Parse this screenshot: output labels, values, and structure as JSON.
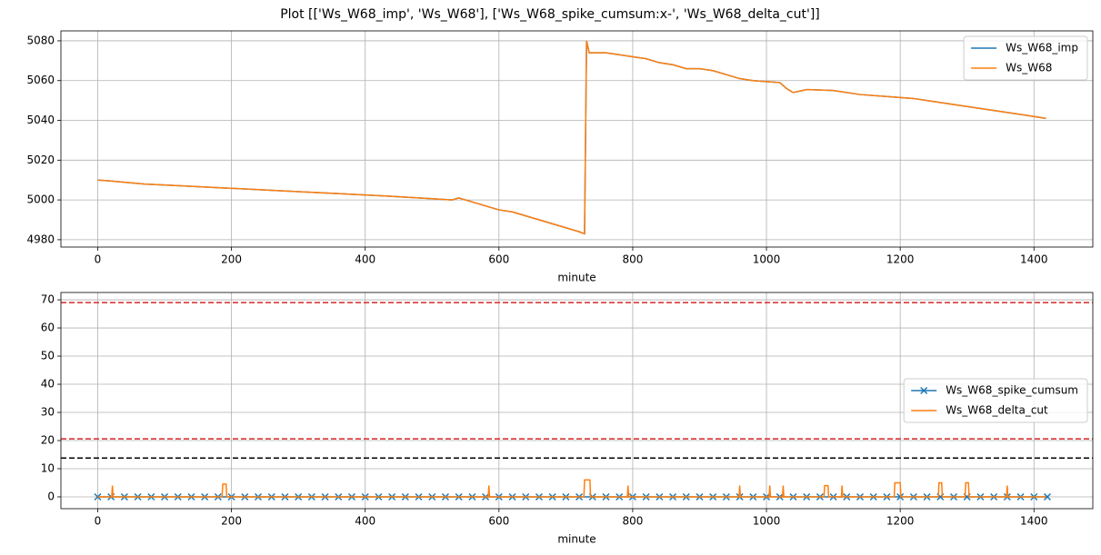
{
  "title": "Plot [['Ws_W68_imp', 'Ws_W68'], ['Ws_W68_spike_cumsum:x-', 'Ws_W68_delta_cut']]",
  "chart_data": [
    {
      "type": "line",
      "xlabel": "minute",
      "grid": true,
      "legend": "upper right",
      "xlim": [
        -55,
        1488
      ],
      "ylim": [
        4976.3,
        5085
      ],
      "xticks": [
        0,
        200,
        400,
        600,
        800,
        1000,
        1200,
        1400
      ],
      "yticks": [
        4980,
        5000,
        5020,
        5040,
        5060,
        5080
      ],
      "x": [
        0,
        20,
        70,
        130,
        190,
        250,
        310,
        370,
        430,
        480,
        530,
        540,
        560,
        580,
        600,
        620,
        640,
        660,
        680,
        700,
        720,
        728,
        731,
        735,
        760,
        780,
        800,
        820,
        840,
        860,
        880,
        900,
        920,
        940,
        960,
        980,
        1000,
        1020,
        1030,
        1040,
        1060,
        1100,
        1140,
        1180,
        1220,
        1260,
        1300,
        1340,
        1380,
        1418
      ],
      "series": [
        {
          "name": "Ws_W68_imp",
          "color": "#1f77b4",
          "values": [
            5010,
            5009.5,
            5008,
            5007,
            5006,
            5005,
            5004,
            5003,
            5002,
            5001,
            5000,
            5001,
            4999,
            4997,
            4995,
            4994,
            4992,
            4990,
            4988,
            4986,
            4984,
            4983,
            5080,
            5074,
            5074,
            5073,
            5072,
            5071,
            5069,
            5068,
            5066,
            5066,
            5065,
            5063,
            5061,
            5060,
            5059.5,
            5059,
            5056,
            5054,
            5055.5,
            5055,
            5053,
            5052,
            5051,
            5049,
            5047,
            5045,
            5043,
            5041
          ]
        },
        {
          "name": "Ws_W68",
          "color": "#ff7f0e",
          "values": [
            5010,
            5009.5,
            5008,
            5007,
            5006,
            5005,
            5004,
            5003,
            5002,
            5001,
            5000,
            5001,
            4999,
            4997,
            4995,
            4994,
            4992,
            4990,
            4988,
            4986,
            4984,
            4983,
            5080,
            5074,
            5074,
            5073,
            5072,
            5071,
            5069,
            5068,
            5066,
            5066,
            5065,
            5063,
            5061,
            5060,
            5059.5,
            5059,
            5056,
            5054,
            5055.5,
            5055,
            5053,
            5052,
            5051,
            5049,
            5047,
            5045,
            5043,
            5041
          ]
        }
      ]
    },
    {
      "type": "line",
      "xlabel": "minute",
      "grid": true,
      "legend": "center right",
      "xlim": [
        -55,
        1488
      ],
      "ylim": [
        -4.2,
        72.6
      ],
      "xticks": [
        0,
        200,
        400,
        600,
        800,
        1000,
        1200,
        1400
      ],
      "yticks": [
        0,
        10,
        20,
        30,
        40,
        50,
        60,
        70
      ],
      "hlines": [
        {
          "value": 69,
          "color": "#d62728",
          "style": "dashed"
        },
        {
          "value": 20.6,
          "color": "#d62728",
          "style": "dashed"
        },
        {
          "value": 13.8,
          "color": "#000000",
          "style": "dashed"
        }
      ],
      "series": [
        {
          "name": "Ws_W68_spike_cumsum",
          "color": "#1f77b4",
          "marker": "x",
          "x": [
            0,
            20,
            40,
            60,
            80,
            100,
            120,
            140,
            160,
            180,
            200,
            220,
            240,
            260,
            280,
            300,
            320,
            340,
            360,
            380,
            400,
            420,
            440,
            460,
            480,
            500,
            520,
            540,
            560,
            580,
            600,
            620,
            640,
            660,
            680,
            700,
            720,
            740,
            760,
            780,
            800,
            820,
            840,
            860,
            880,
            900,
            920,
            940,
            960,
            980,
            1000,
            1020,
            1040,
            1060,
            1080,
            1100,
            1120,
            1140,
            1160,
            1180,
            1200,
            1220,
            1240,
            1260,
            1280,
            1300,
            1320,
            1340,
            1360,
            1380,
            1400,
            1420
          ],
          "values": [
            0,
            0,
            0,
            0,
            0,
            0,
            0,
            0,
            0,
            0,
            0,
            0,
            0,
            0,
            0,
            0,
            0,
            0,
            0,
            0,
            0,
            0,
            0,
            0,
            0,
            0,
            0,
            0,
            0,
            0,
            0,
            0,
            0,
            0,
            0,
            0,
            0,
            0,
            0,
            0,
            0,
            0,
            0,
            0,
            0,
            0,
            0,
            0,
            0,
            0,
            0,
            0,
            0,
            0,
            0,
            0,
            0,
            0,
            0,
            0,
            0,
            0,
            0,
            0,
            0,
            0,
            0,
            0,
            0,
            0,
            0,
            0
          ]
        },
        {
          "name": "Ws_W68_delta_cut",
          "color": "#ff7f0e",
          "x": [
            0,
            21,
            22,
            23,
            186,
            187,
            192,
            193,
            584,
            585,
            586,
            727,
            728,
            736,
            737,
            792,
            793,
            794,
            959,
            960,
            961,
            1004,
            1005,
            1006,
            1024,
            1025,
            1026,
            1086,
            1087,
            1092,
            1093,
            1112,
            1113,
            1114,
            1191,
            1192,
            1200,
            1201,
            1257,
            1258,
            1262,
            1263,
            1297,
            1298,
            1302,
            1303,
            1359,
            1360,
            1361,
            1418
          ],
          "values": [
            0,
            0,
            4,
            0,
            0,
            4.5,
            4.5,
            0,
            0,
            4,
            0,
            0,
            6,
            6,
            0,
            0,
            4,
            0,
            0,
            4,
            0,
            0,
            4,
            0,
            0,
            4,
            0,
            0,
            4,
            4,
            0,
            0,
            4,
            0,
            0,
            5,
            5,
            0,
            0,
            5,
            5,
            0,
            0,
            5,
            5,
            0,
            0,
            4,
            0,
            0
          ]
        }
      ]
    }
  ]
}
